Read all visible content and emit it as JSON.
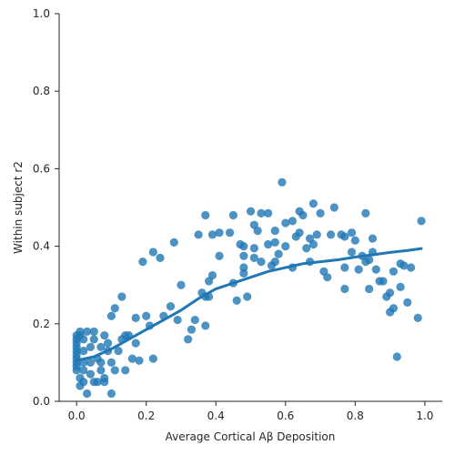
{
  "chart_data": {
    "type": "scatter",
    "title": "",
    "xlabel": "Average Cortical Aβ Deposition",
    "ylabel": "Within subject r2",
    "xlim": [
      -0.05,
      1.05
    ],
    "ylim": [
      0.0,
      1.0
    ],
    "xticks": [
      0.0,
      0.2,
      0.4,
      0.6,
      0.8,
      1.0
    ],
    "yticks": [
      0.0,
      0.2,
      0.4,
      0.6,
      0.8,
      1.0
    ],
    "xtick_labels": [
      "0.0",
      "0.2",
      "0.4",
      "0.6",
      "0.8",
      "1.0"
    ],
    "ytick_labels": [
      "0.0",
      "0.2",
      "0.4",
      "0.6",
      "0.8",
      "1.0"
    ],
    "grid": false,
    "colors": {
      "points": "#1f77b4",
      "trend": "#1f77b4"
    },
    "points": [
      [
        0.0,
        0.17
      ],
      [
        0.0,
        0.16
      ],
      [
        0.0,
        0.15
      ],
      [
        0.0,
        0.14
      ],
      [
        0.0,
        0.13
      ],
      [
        0.0,
        0.12
      ],
      [
        0.0,
        0.11
      ],
      [
        0.0,
        0.1
      ],
      [
        0.0,
        0.09
      ],
      [
        0.0,
        0.08
      ],
      [
        0.01,
        0.06
      ],
      [
        0.01,
        0.04
      ],
      [
        0.01,
        0.18
      ],
      [
        0.01,
        0.17
      ],
      [
        0.02,
        0.16
      ],
      [
        0.02,
        0.13
      ],
      [
        0.02,
        0.1
      ],
      [
        0.02,
        0.08
      ],
      [
        0.02,
        0.05
      ],
      [
        0.03,
        0.02
      ],
      [
        0.03,
        0.18
      ],
      [
        0.04,
        0.14
      ],
      [
        0.04,
        0.1
      ],
      [
        0.04,
        0.07
      ],
      [
        0.05,
        0.16
      ],
      [
        0.05,
        0.05
      ],
      [
        0.05,
        0.18
      ],
      [
        0.06,
        0.11
      ],
      [
        0.06,
        0.05
      ],
      [
        0.07,
        0.1
      ],
      [
        0.07,
        0.08
      ],
      [
        0.07,
        0.14
      ],
      [
        0.08,
        0.05
      ],
      [
        0.08,
        0.06
      ],
      [
        0.08,
        0.17
      ],
      [
        0.09,
        0.13
      ],
      [
        0.09,
        0.15
      ],
      [
        0.1,
        0.22
      ],
      [
        0.1,
        0.1
      ],
      [
        0.1,
        0.02
      ],
      [
        0.11,
        0.08
      ],
      [
        0.11,
        0.24
      ],
      [
        0.12,
        0.13
      ],
      [
        0.13,
        0.16
      ],
      [
        0.13,
        0.27
      ],
      [
        0.14,
        0.08
      ],
      [
        0.14,
        0.17
      ],
      [
        0.15,
        0.17
      ],
      [
        0.16,
        0.11
      ],
      [
        0.17,
        0.215
      ],
      [
        0.17,
        0.15
      ],
      [
        0.18,
        0.105
      ],
      [
        0.19,
        0.36
      ],
      [
        0.2,
        0.22
      ],
      [
        0.21,
        0.195
      ],
      [
        0.22,
        0.11
      ],
      [
        0.22,
        0.385
      ],
      [
        0.24,
        0.37
      ],
      [
        0.25,
        0.22
      ],
      [
        0.27,
        0.245
      ],
      [
        0.28,
        0.41
      ],
      [
        0.29,
        0.21
      ],
      [
        0.3,
        0.3
      ],
      [
        0.32,
        0.16
      ],
      [
        0.33,
        0.185
      ],
      [
        0.34,
        0.21
      ],
      [
        0.35,
        0.43
      ],
      [
        0.36,
        0.28
      ],
      [
        0.37,
        0.48
      ],
      [
        0.37,
        0.195
      ],
      [
        0.37,
        0.27
      ],
      [
        0.38,
        0.27
      ],
      [
        0.38,
        0.31
      ],
      [
        0.39,
        0.325
      ],
      [
        0.39,
        0.43
      ],
      [
        0.41,
        0.435
      ],
      [
        0.41,
        0.375
      ],
      [
        0.44,
        0.435
      ],
      [
        0.45,
        0.305
      ],
      [
        0.45,
        0.48
      ],
      [
        0.46,
        0.26
      ],
      [
        0.47,
        0.405
      ],
      [
        0.48,
        0.4
      ],
      [
        0.48,
        0.345
      ],
      [
        0.48,
        0.375
      ],
      [
        0.48,
        0.33
      ],
      [
        0.49,
        0.27
      ],
      [
        0.5,
        0.49
      ],
      [
        0.51,
        0.37
      ],
      [
        0.51,
        0.395
      ],
      [
        0.51,
        0.455
      ],
      [
        0.52,
        0.44
      ],
      [
        0.53,
        0.36
      ],
      [
        0.53,
        0.485
      ],
      [
        0.55,
        0.405
      ],
      [
        0.55,
        0.485
      ],
      [
        0.56,
        0.35
      ],
      [
        0.57,
        0.41
      ],
      [
        0.57,
        0.36
      ],
      [
        0.57,
        0.44
      ],
      [
        0.58,
        0.38
      ],
      [
        0.59,
        0.565
      ],
      [
        0.6,
        0.4
      ],
      [
        0.6,
        0.46
      ],
      [
        0.62,
        0.345
      ],
      [
        0.62,
        0.465
      ],
      [
        0.63,
        0.425
      ],
      [
        0.64,
        0.49
      ],
      [
        0.64,
        0.435
      ],
      [
        0.65,
        0.48
      ],
      [
        0.66,
        0.395
      ],
      [
        0.67,
        0.36
      ],
      [
        0.67,
        0.42
      ],
      [
        0.68,
        0.405
      ],
      [
        0.68,
        0.51
      ],
      [
        0.69,
        0.43
      ],
      [
        0.7,
        0.485
      ],
      [
        0.71,
        0.335
      ],
      [
        0.72,
        0.32
      ],
      [
        0.73,
        0.43
      ],
      [
        0.74,
        0.5
      ],
      [
        0.76,
        0.43
      ],
      [
        0.77,
        0.345
      ],
      [
        0.77,
        0.425
      ],
      [
        0.77,
        0.29
      ],
      [
        0.79,
        0.385
      ],
      [
        0.79,
        0.435
      ],
      [
        0.8,
        0.415
      ],
      [
        0.81,
        0.34
      ],
      [
        0.82,
        0.375
      ],
      [
        0.83,
        0.485
      ],
      [
        0.83,
        0.36
      ],
      [
        0.84,
        0.365
      ],
      [
        0.84,
        0.29
      ],
      [
        0.85,
        0.385
      ],
      [
        0.85,
        0.42
      ],
      [
        0.86,
        0.34
      ],
      [
        0.87,
        0.31
      ],
      [
        0.88,
        0.31
      ],
      [
        0.89,
        0.27
      ],
      [
        0.9,
        0.28
      ],
      [
        0.9,
        0.23
      ],
      [
        0.91,
        0.24
      ],
      [
        0.91,
        0.335
      ],
      [
        0.92,
        0.115
      ],
      [
        0.93,
        0.295
      ],
      [
        0.93,
        0.355
      ],
      [
        0.94,
        0.35
      ],
      [
        0.95,
        0.255
      ],
      [
        0.96,
        0.345
      ],
      [
        0.98,
        0.215
      ],
      [
        0.99,
        0.465
      ]
    ],
    "trend_line": [
      [
        0.0,
        0.105
      ],
      [
        0.05,
        0.115
      ],
      [
        0.1,
        0.135
      ],
      [
        0.15,
        0.16
      ],
      [
        0.2,
        0.185
      ],
      [
        0.25,
        0.21
      ],
      [
        0.3,
        0.235
      ],
      [
        0.35,
        0.265
      ],
      [
        0.4,
        0.29
      ],
      [
        0.45,
        0.305
      ],
      [
        0.5,
        0.32
      ],
      [
        0.55,
        0.335
      ],
      [
        0.6,
        0.345
      ],
      [
        0.65,
        0.355
      ],
      [
        0.7,
        0.36
      ],
      [
        0.75,
        0.365
      ],
      [
        0.8,
        0.372
      ],
      [
        0.85,
        0.378
      ],
      [
        0.9,
        0.384
      ],
      [
        0.95,
        0.389
      ],
      [
        0.99,
        0.394
      ]
    ]
  }
}
